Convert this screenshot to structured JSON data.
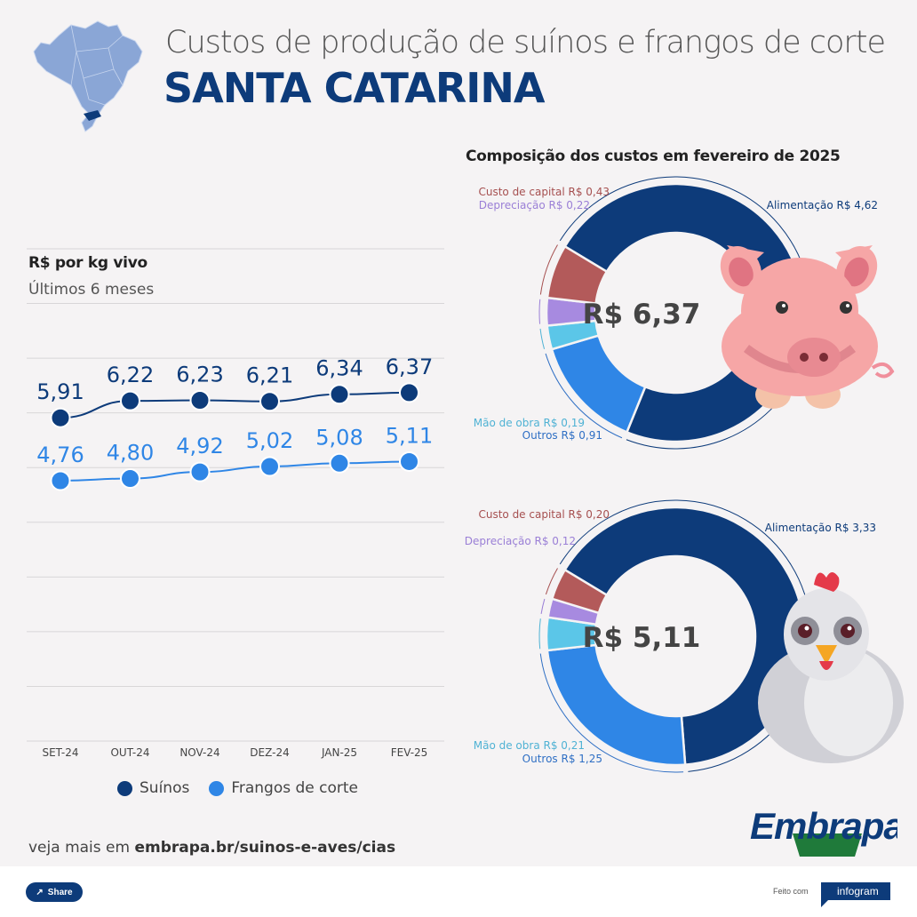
{
  "header": {
    "title": "Custos de produção de suínos e frangos de corte",
    "subtitle": "SANTA CATARINA"
  },
  "colors": {
    "suinos": "#0d3b7a",
    "frangos": "#2f86e6",
    "alimentacao": "#0d3b7a",
    "custo_capital": "#b35a5a",
    "depreciacao": "#a78ae0",
    "mao_obra": "#5bc6e8",
    "outros": "#2f86e6"
  },
  "chart_data": [
    {
      "type": "line",
      "title": "R$ por kg vivo",
      "subtitle": "Últimos 6 meses",
      "categories": [
        "SET-24",
        "OUT-24",
        "NOV-24",
        "DEZ-24",
        "JAN-25",
        "FEV-25"
      ],
      "series": [
        {
          "name": "Suínos",
          "values": [
            5.91,
            6.22,
            6.23,
            6.21,
            6.34,
            6.37
          ],
          "labels": [
            "5,91",
            "6,22",
            "6,23",
            "6,21",
            "6,34",
            "6,37"
          ]
        },
        {
          "name": "Frangos de corte",
          "values": [
            4.76,
            4.8,
            4.92,
            5.02,
            5.08,
            5.11
          ],
          "labels": [
            "4,76",
            "4,80",
            "4,92",
            "5,02",
            "5,08",
            "5,11"
          ]
        }
      ],
      "ylim": [
        0,
        9
      ],
      "grid": true,
      "legend": "bottom"
    },
    {
      "type": "pie",
      "title": "Composição dos custos em fevereiro de 2025",
      "center_label": "R$ 6,37",
      "total": 6.37,
      "slices": [
        {
          "name": "Alimentação",
          "value": 4.62,
          "label": "Alimentação R$ 4,62",
          "color_key": "alimentacao"
        },
        {
          "name": "Outros",
          "value": 0.91,
          "label": "Outros R$ 0,91",
          "color_key": "outros"
        },
        {
          "name": "Mão de obra",
          "value": 0.19,
          "label": "Mão de obra R$ 0,19",
          "color_key": "mao_obra"
        },
        {
          "name": "Depreciação",
          "value": 0.22,
          "label": "Depreciação R$ 0,22",
          "color_key": "depreciacao"
        },
        {
          "name": "Custo de capital",
          "value": 0.43,
          "label": "Custo de capital R$ 0,43",
          "color_key": "custo_capital"
        }
      ]
    },
    {
      "type": "pie",
      "center_label": "R$ 5,11",
      "total": 5.11,
      "slices": [
        {
          "name": "Alimentação",
          "value": 3.33,
          "label": "Alimentação R$ 3,33",
          "color_key": "alimentacao"
        },
        {
          "name": "Outros",
          "value": 1.25,
          "label": "Outros R$ 1,25",
          "color_key": "outros"
        },
        {
          "name": "Mão de obra",
          "value": 0.21,
          "label": "Mão de obra R$ 0,21",
          "color_key": "mao_obra"
        },
        {
          "name": "Depreciação",
          "value": 0.12,
          "label": "Depreciação R$ 0,12",
          "color_key": "depreciacao"
        },
        {
          "name": "Custo de capital",
          "value": 0.2,
          "label": "Custo de capital R$ 0,20",
          "color_key": "custo_capital"
        }
      ]
    }
  ],
  "source": {
    "prefix": "veja mais em ",
    "link": "embrapa.br/suinos-e-aves/cias"
  },
  "brand": {
    "name": "Embrapa"
  },
  "footer": {
    "share_label": "Share",
    "made_with": "Feito com",
    "platform": "infogram"
  }
}
